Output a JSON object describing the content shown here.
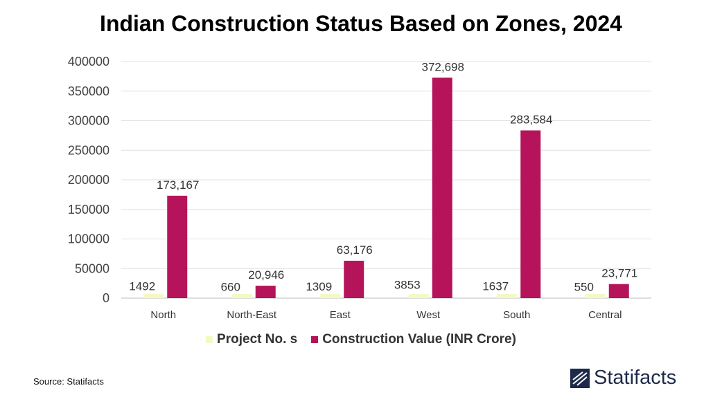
{
  "chart_data": {
    "type": "bar",
    "title": "Indian Construction Status Based on Zones, 2024",
    "categories": [
      "North",
      "North-East",
      "East",
      "West",
      "South",
      "Central"
    ],
    "series": [
      {
        "name": "Project No. s",
        "color": "#f4f9c4",
        "values": [
          1492,
          660,
          1309,
          3853,
          1637,
          550
        ],
        "labels": [
          "1492",
          "660",
          "1309",
          "3853",
          "1637",
          "550"
        ]
      },
      {
        "name": "Construction Value (INR Crore)",
        "color": "#b5145a",
        "values": [
          173167,
          20946,
          63176,
          372698,
          283584,
          23771
        ],
        "labels": [
          "173,167",
          "20,946",
          "63,176",
          "372,698",
          "283,584",
          "23,771"
        ]
      }
    ],
    "ylim": [
      0,
      400000
    ],
    "yticks": [
      "0",
      "50000",
      "100000",
      "150000",
      "200000",
      "250000",
      "300000",
      "350000",
      "400000"
    ],
    "grid": true,
    "legend": "bottom"
  },
  "footer": {
    "source": "Source: Statifacts",
    "brand": "Statifacts"
  }
}
